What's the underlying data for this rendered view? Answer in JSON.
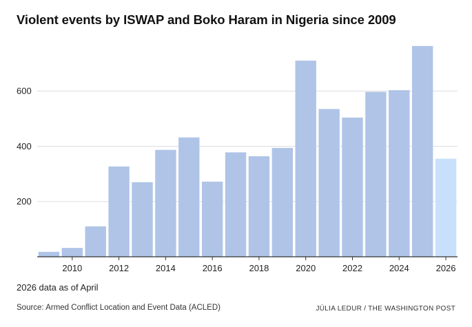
{
  "header": {
    "title": "Violent events by ISWAP and Boko Haram in Nigeria since 2009"
  },
  "footer": {
    "note": "2026 data as of April",
    "source": "Source: Armed Conflict Location and Event Data (ACLED)",
    "credit": "JÚLIA LEDUR / THE WASHINGTON POST"
  },
  "colors": {
    "bar": "#afc4e7",
    "bar_partial": "#c8e0fb",
    "grid": "#dddddd",
    "axis": "#333333"
  },
  "chart_data": {
    "type": "bar",
    "title": "Violent events by ISWAP and Boko Haram in Nigeria since 2009",
    "xlabel": "",
    "ylabel": "",
    "categories": [
      2009,
      2010,
      2011,
      2012,
      2013,
      2014,
      2015,
      2016,
      2017,
      2018,
      2019,
      2020,
      2021,
      2022,
      2023,
      2024,
      2025,
      2026
    ],
    "values": [
      18,
      32,
      110,
      327,
      270,
      387,
      432,
      272,
      378,
      364,
      394,
      710,
      535,
      504,
      597,
      603,
      763,
      355
    ],
    "partial_categories": [
      2026
    ],
    "x_tick_labels": [
      "2010",
      "2012",
      "2014",
      "2016",
      "2018",
      "2020",
      "2022",
      "2024",
      "2026"
    ],
    "y_ticks": [
      200,
      400,
      600
    ],
    "ylim": [
      0,
      780
    ],
    "grid": true,
    "legend": "none"
  }
}
